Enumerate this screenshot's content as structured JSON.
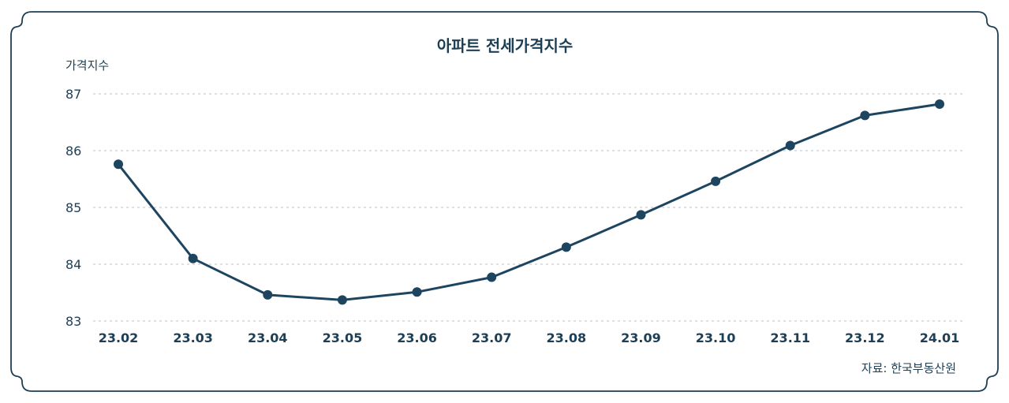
{
  "title": "아파트 전세가격지수",
  "unit_label": "가격지수",
  "source": "자료: 한국부동산원",
  "colors": {
    "line": "#1d4560",
    "text": "#1d3f55",
    "grid": "#b9c2c9"
  },
  "chart_data": {
    "type": "line",
    "title": "아파트 전세가격지수",
    "ylabel": "가격지수",
    "categories": [
      "23.02",
      "23.03",
      "23.04",
      "23.05",
      "23.06",
      "23.07",
      "23.08",
      "23.09",
      "23.10",
      "23.11",
      "23.12",
      "24.01"
    ],
    "series": [
      {
        "values": [
          85.76,
          84.1,
          83.46,
          83.37,
          83.51,
          83.77,
          84.3,
          84.87,
          85.46,
          86.09,
          86.62,
          86.82
        ]
      }
    ],
    "ylim": [
      83,
      87
    ],
    "yticks": [
      83,
      84,
      85,
      86,
      87
    ],
    "grid": true,
    "legend": "none"
  }
}
